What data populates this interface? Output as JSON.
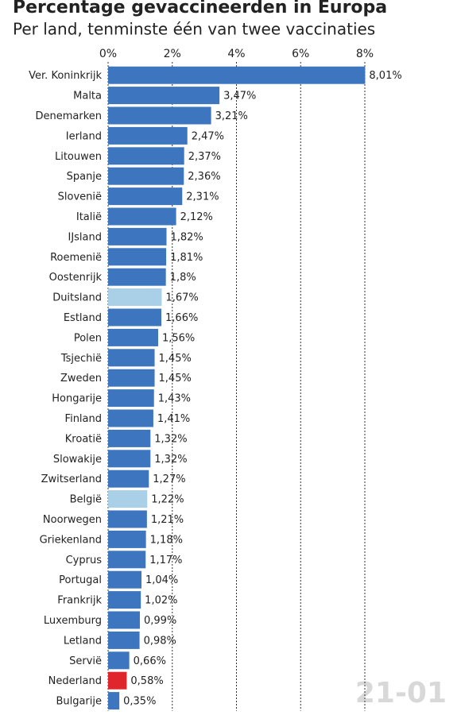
{
  "chart_data": {
    "type": "bar",
    "orientation": "horizontal",
    "title": "Percentage gevaccineerden in Europa",
    "subtitle": "Per land, tenminste één van twee vaccinaties",
    "annotation": "21-01",
    "categories": [
      "Ver. Koninkrijk",
      "Malta",
      "Denemarken",
      "Ierland",
      "Litouwen",
      "Spanje",
      "Slovenië",
      "Italië",
      "IJsland",
      "Roemenië",
      "Oostenrijk",
      "Duitsland",
      "Estland",
      "Polen",
      "Tsjechië",
      "Zweden",
      "Hongarije",
      "Finland",
      "Kroatië",
      "Slowakije",
      "Zwitserland",
      "België",
      "Noorwegen",
      "Griekenland",
      "Cyprus",
      "Portugal",
      "Frankrijk",
      "Luxemburg",
      "Letland",
      "Servië",
      "Nederland",
      "Bulgarije"
    ],
    "values": [
      8.01,
      3.47,
      3.21,
      2.47,
      2.37,
      2.36,
      2.31,
      2.12,
      1.82,
      1.81,
      1.8,
      1.67,
      1.66,
      1.56,
      1.45,
      1.45,
      1.43,
      1.41,
      1.32,
      1.32,
      1.27,
      1.22,
      1.21,
      1.18,
      1.17,
      1.04,
      1.02,
      0.99,
      0.98,
      0.66,
      0.58,
      0.35
    ],
    "value_labels": [
      "8,01%",
      "3,47%",
      "3,21%",
      "2,47%",
      "2,37%",
      "2,36%",
      "2,31%",
      "2,12%",
      "1,82%",
      "1,81%",
      "1,8%",
      "1,67%",
      "1,66%",
      "1,56%",
      "1,45%",
      "1,45%",
      "1,43%",
      "1,41%",
      "1,32%",
      "1,32%",
      "1,27%",
      "1,22%",
      "1,21%",
      "1,18%",
      "1,17%",
      "1,04%",
      "1,02%",
      "0,99%",
      "0,98%",
      "0,66%",
      "0,58%",
      "0,35%"
    ],
    "colors": [
      "#3d76bf",
      "#3d76bf",
      "#3d76bf",
      "#3d76bf",
      "#3d76bf",
      "#3d76bf",
      "#3d76bf",
      "#3d76bf",
      "#3d76bf",
      "#3d76bf",
      "#3d76bf",
      "#a9d0e7",
      "#3d76bf",
      "#3d76bf",
      "#3d76bf",
      "#3d76bf",
      "#3d76bf",
      "#3d76bf",
      "#3d76bf",
      "#3d76bf",
      "#3d76bf",
      "#a9d0e7",
      "#3d76bf",
      "#3d76bf",
      "#3d76bf",
      "#3d76bf",
      "#3d76bf",
      "#3d76bf",
      "#3d76bf",
      "#3d76bf",
      "#e0262d",
      "#3d76bf"
    ],
    "xlim": [
      0,
      8
    ],
    "xticks": [
      {
        "value": 0,
        "label": "0%"
      },
      {
        "value": 2,
        "label": "2%"
      },
      {
        "value": 4,
        "label": "4%"
      },
      {
        "value": 6,
        "label": "6%"
      },
      {
        "value": 8,
        "label": "8%"
      }
    ],
    "grid": true
  }
}
